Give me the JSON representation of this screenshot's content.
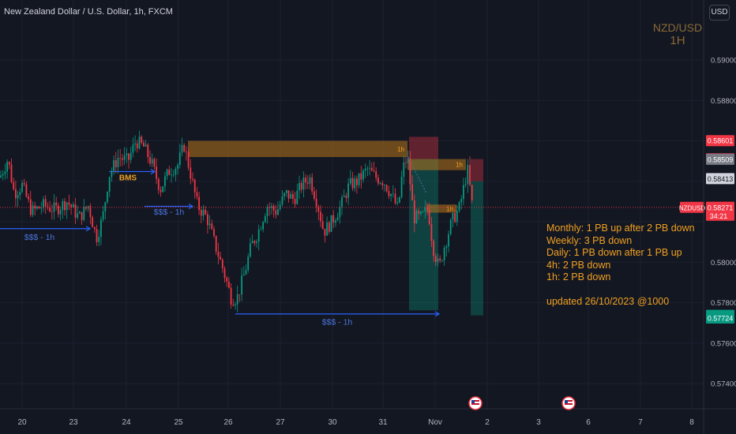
{
  "header": {
    "symbol_line": "New Zealand Dollar / U.S. Dollar, 1h, FXCM",
    "currency_button": "USD"
  },
  "watermark": {
    "line1": "NZD/USD",
    "line2": "1H"
  },
  "annotations": {
    "notes": [
      "Monthly: 1 PB up after 2 PB down",
      "Weekly: 3 PB down",
      "Daily: 1 PB down after 1 PB up",
      "4h: 2 PB down",
      "1h: 2 PB down"
    ],
    "updated": "updated 26/10/2023 @1000",
    "bms_label": "BMS",
    "liquidity_label": "$$$ - 1h",
    "zone_label": "1h"
  },
  "chart_data": {
    "type": "candlestick",
    "instrument": "NZDUSD",
    "timeframe": "1h",
    "ylim": [
      0.573,
      0.592
    ],
    "y_ticks": [
      "0.59000",
      "0.58800",
      "0.58000",
      "0.57800",
      "0.57600",
      "0.57400"
    ],
    "x_ticks": [
      "20",
      "23",
      "24",
      "25",
      "26",
      "27",
      "30",
      "31",
      "Nov",
      "2",
      "3",
      "6",
      "7",
      "8"
    ],
    "price_tags": [
      {
        "label": "0.58601",
        "value": 0.58601,
        "color": "#f23645"
      },
      {
        "label": "0.58511",
        "value": 0.58511,
        "color": "#f23645"
      },
      {
        "label": "0.58509",
        "value": 0.58509,
        "color": "#787b86"
      },
      {
        "label": "0.58413",
        "value": 0.58413,
        "color": "#d1d4dc"
      },
      {
        "label": "0.58271",
        "value": 0.58271,
        "color": "#f23645"
      },
      {
        "label": "0.57737",
        "value": 0.57737,
        "color": "#089981"
      },
      {
        "label": "0.57724",
        "value": 0.57724,
        "color": "#089981"
      }
    ],
    "current": {
      "symbol": "NZDUSD",
      "price": "0.58271",
      "countdown": "34:21",
      "value": 0.58271
    },
    "colors": {
      "up": "#089981",
      "down": "#f23645",
      "zone": "#b8741a",
      "line": "#2962ff"
    },
    "path": [
      [
        0,
        0.5842
      ],
      [
        10,
        0.5851
      ],
      [
        18,
        0.5834
      ],
      [
        28,
        0.5838
      ],
      [
        40,
        0.5825
      ],
      [
        55,
        0.5828
      ],
      [
        70,
        0.5826
      ],
      [
        85,
        0.583
      ],
      [
        100,
        0.5822
      ],
      [
        112,
        0.5828
      ],
      [
        122,
        0.5812
      ],
      [
        130,
        0.5822
      ],
      [
        138,
        0.5843
      ],
      [
        150,
        0.5852
      ],
      [
        162,
        0.585
      ],
      [
        172,
        0.586
      ],
      [
        182,
        0.5857
      ],
      [
        192,
        0.5849
      ],
      [
        203,
        0.5836
      ],
      [
        214,
        0.5845
      ],
      [
        225,
        0.5848
      ],
      [
        233,
        0.5858
      ],
      [
        240,
        0.5846
      ],
      [
        250,
        0.5828
      ],
      [
        262,
        0.5822
      ],
      [
        272,
        0.5809
      ],
      [
        282,
        0.5797
      ],
      [
        293,
        0.5782
      ],
      [
        300,
        0.5782
      ],
      [
        310,
        0.5795
      ],
      [
        318,
        0.5808
      ],
      [
        326,
        0.5814
      ],
      [
        338,
        0.5828
      ],
      [
        350,
        0.5825
      ],
      [
        362,
        0.5834
      ],
      [
        372,
        0.5831
      ],
      [
        382,
        0.5838
      ],
      [
        392,
        0.5842
      ],
      [
        402,
        0.5829
      ],
      [
        410,
        0.5815
      ],
      [
        420,
        0.582
      ],
      [
        432,
        0.5828
      ],
      [
        442,
        0.5838
      ],
      [
        453,
        0.584
      ],
      [
        465,
        0.5846
      ],
      [
        476,
        0.5842
      ],
      [
        486,
        0.584
      ],
      [
        496,
        0.5833
      ],
      [
        504,
        0.5826
      ],
      [
        510,
        0.5846
      ],
      [
        516,
        0.5852
      ],
      [
        524,
        0.5822
      ],
      [
        534,
        0.5822
      ],
      [
        542,
        0.5827
      ],
      [
        548,
        0.5808
      ],
      [
        556,
        0.5797
      ],
      [
        562,
        0.5807
      ],
      [
        572,
        0.582
      ],
      [
        582,
        0.5827
      ],
      [
        592,
        0.5846
      ],
      [
        598,
        0.5828
      ]
    ],
    "zones": [
      {
        "x0": 238,
        "x1": 516,
        "y_top": 0.586,
        "y_bot": 0.5852,
        "label": "1h"
      },
      {
        "x0": 517,
        "x1": 590,
        "y_top": 0.5851,
        "y_bot": 0.58455,
        "label": "1h"
      },
      {
        "x0": 540,
        "x1": 578,
        "y_top": 0.58285,
        "y_bot": 0.58245,
        "label": "1h"
      }
    ],
    "red_boxes": [
      {
        "x0": 518,
        "x1": 555,
        "y_top": 0.5862,
        "y_bot": 0.5851
      },
      {
        "x0": 596,
        "x1": 612,
        "y_top": 0.5851,
        "y_bot": 0.584
      }
    ],
    "green_boxes": [
      {
        "x0": 518,
        "x1": 555,
        "y_top": 0.5851,
        "y_bot": 0.57762
      },
      {
        "x0": 596,
        "x1": 612,
        "y_top": 0.584,
        "y_bot": 0.57737
      }
    ],
    "liquidity_lines": [
      {
        "x0": 0,
        "x1": 114,
        "y": 0.58166,
        "label_x": 50,
        "label_y": 0.5811
      },
      {
        "x0": 183,
        "x1": 244,
        "y": 0.58276,
        "label_x": 214,
        "label_y": 0.58235
      },
      {
        "x0": 298,
        "x1": 556,
        "y": 0.57744,
        "label_x": 427,
        "label_y": 0.5769
      },
      {
        "x0": 138,
        "x1": 196,
        "y": 0.58448,
        "label_x": 162,
        "label_y": 0.58405,
        "label_key": "bms"
      }
    ]
  }
}
